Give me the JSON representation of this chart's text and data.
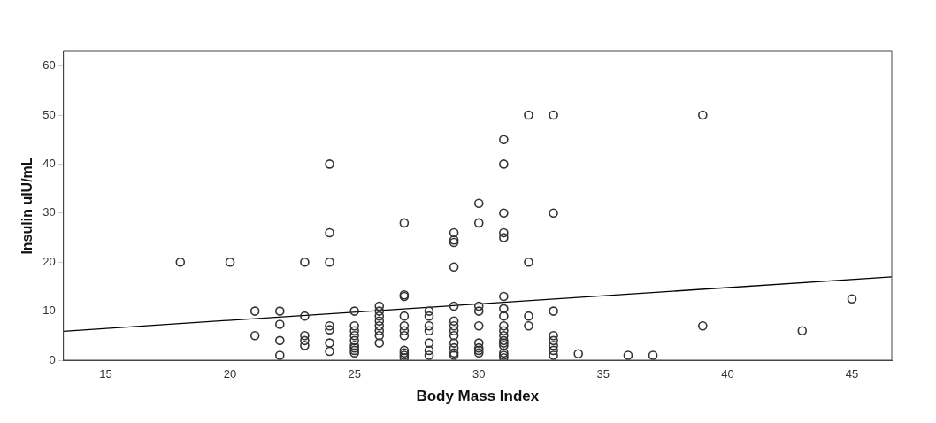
{
  "chart_data": {
    "type": "scatter",
    "xlabel": "Body Mass Index",
    "ylabel": "Insulin uIU/mL",
    "xlim": [
      13.3,
      46.6
    ],
    "ylim": [
      0,
      63
    ],
    "xticks": [
      15,
      20,
      25,
      30,
      35,
      40,
      45
    ],
    "yticks": [
      0,
      10,
      20,
      30,
      40,
      50,
      60
    ],
    "grid": false,
    "legend": false,
    "marker": "circle",
    "series": [
      {
        "color": "#333333",
        "x": [
          18,
          20,
          21,
          21,
          22,
          22,
          22,
          22,
          23,
          23,
          23,
          23,
          23,
          24,
          24,
          24,
          24,
          24,
          24,
          24,
          25,
          25,
          25,
          25,
          25,
          25,
          25,
          25,
          25,
          26,
          26,
          26,
          26,
          26,
          26,
          26,
          26,
          27,
          27,
          27,
          27,
          27,
          27,
          27,
          27,
          27,
          27,
          27,
          28,
          28,
          28,
          28,
          28,
          28,
          28,
          29,
          29,
          29,
          29,
          29,
          29,
          29,
          29,
          29,
          29,
          29,
          29,
          29,
          30,
          30,
          30,
          30,
          30,
          30,
          30,
          30,
          30,
          31,
          31,
          31,
          31,
          31,
          31,
          31,
          31,
          31,
          31,
          31,
          31,
          31,
          31,
          31,
          31,
          31,
          32,
          32,
          32,
          32,
          33,
          33,
          33,
          33,
          33,
          33,
          33,
          33,
          34,
          36,
          37,
          39,
          39,
          43,
          45
        ],
        "values": [
          20,
          20,
          10,
          5,
          10,
          7.3,
          4,
          1,
          20,
          9,
          5,
          4,
          3,
          40,
          26,
          20,
          7,
          6.2,
          3.5,
          1.8,
          10,
          7,
          6,
          5,
          4,
          3,
          2.5,
          2,
          1.5,
          11,
          10,
          9,
          8,
          7,
          6,
          5,
          3.5,
          28,
          13.3,
          13,
          9,
          7,
          6,
          5,
          2,
          1.5,
          1,
          0.5,
          10,
          9,
          7,
          6,
          3.5,
          2,
          1,
          26,
          24.5,
          24,
          19,
          11,
          8,
          7,
          6,
          5,
          3.5,
          2.5,
          1.5,
          1,
          32,
          28,
          11,
          10,
          7,
          3.5,
          2.5,
          2,
          1.5,
          45,
          40,
          30,
          26,
          25,
          13,
          10.5,
          9,
          7,
          6,
          5,
          4,
          3.5,
          3,
          1.5,
          1,
          0.5,
          50,
          20,
          9,
          7,
          50,
          30,
          10,
          5,
          4,
          3,
          2,
          1,
          1.3,
          1,
          1,
          50,
          7,
          6,
          12.5
        ]
      },
      {
        "type": "line",
        "color": "#000000",
        "marker": "none",
        "x": [
          13.3,
          46.6
        ],
        "values": [
          5.9,
          17.0
        ]
      }
    ]
  }
}
